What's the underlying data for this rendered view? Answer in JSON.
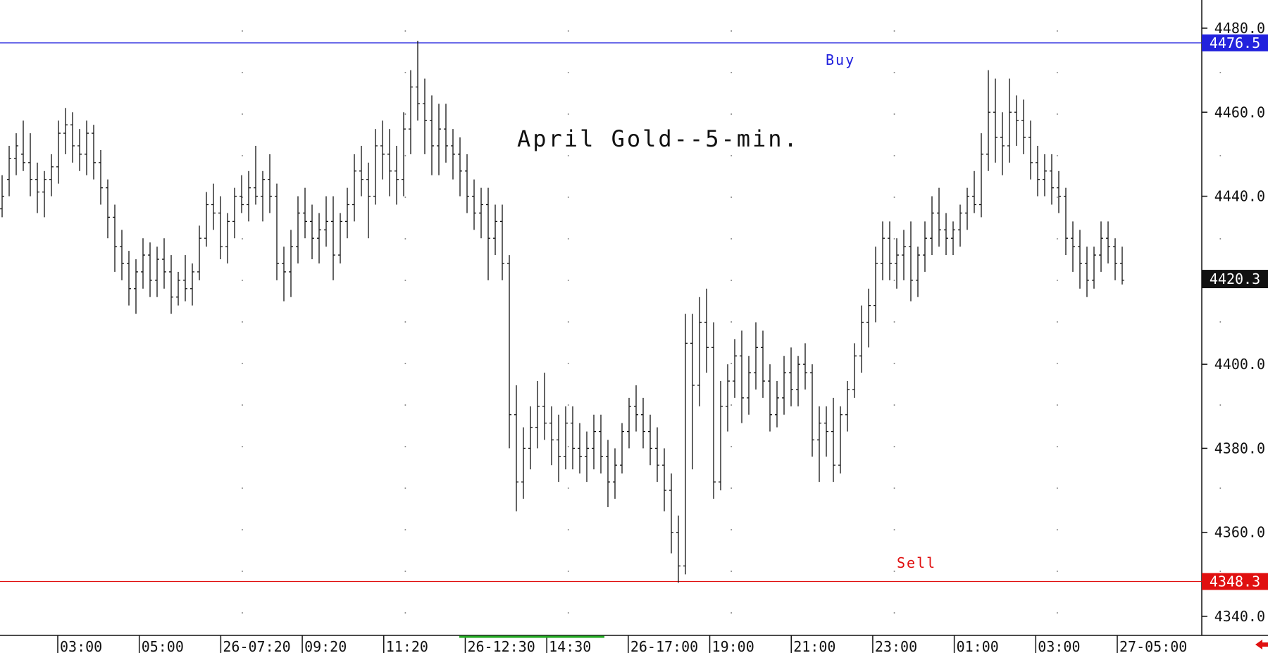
{
  "chart_data": {
    "type": "ohlc",
    "title": "April Gold--5-min.",
    "colors": {
      "bars": "#111111",
      "buy_line": "#2222dd",
      "sell_line": "#e01010",
      "last_price_badge": "#111111",
      "session_marker": "#22aa22",
      "scroll_arrow": "#e01010"
    },
    "ylim": [
      4336,
      4483
    ],
    "y_ticks": [
      "4480.0",
      "4460.0",
      "4440.0",
      "4420.0",
      "4400.0",
      "4380.0",
      "4360.0",
      "4340.0"
    ],
    "grid": "dotted vertical at time labels",
    "x_labels": [
      "03:00",
      "05:00",
      "26-07:20",
      "09:20",
      "11:20",
      "26-12:30",
      "14:30",
      "26-17:00",
      "19:00",
      "21:00",
      "23:00",
      "01:00",
      "03:00",
      "27-05:00"
    ],
    "last_price": "4420.3",
    "levels": [
      {
        "label": "Buy",
        "value": 4476.5,
        "value_label": "4476.5"
      },
      {
        "label": "Sell",
        "value": 4348.3,
        "value_label": "4348.3"
      }
    ],
    "bars": [
      [
        4437,
        4445,
        4435,
        4440
      ],
      [
        4444,
        4452,
        4440,
        4449
      ],
      [
        4449,
        4455,
        4445,
        4452
      ],
      [
        4450,
        4458,
        4446,
        4448
      ],
      [
        4448,
        4455,
        4440,
        4444
      ],
      [
        4444,
        4448,
        4436,
        4441
      ],
      [
        4441,
        4446,
        4435,
        4444
      ],
      [
        4444,
        4450,
        4440,
        4447
      ],
      [
        4447,
        4458,
        4443,
        4455
      ],
      [
        4455,
        4461,
        4450,
        4457
      ],
      [
        4457,
        4460,
        4448,
        4452
      ],
      [
        4452,
        4456,
        4446,
        4450
      ],
      [
        4450,
        4458,
        4445,
        4455
      ],
      [
        4455,
        4457,
        4444,
        4448
      ],
      [
        4448,
        4451,
        4438,
        4442
      ],
      [
        4442,
        4444,
        4430,
        4435
      ],
      [
        4435,
        4438,
        4422,
        4428
      ],
      [
        4428,
        4432,
        4420,
        4424
      ],
      [
        4424,
        4427,
        4414,
        4418
      ],
      [
        4418,
        4425,
        4412,
        4422
      ],
      [
        4422,
        4430,
        4418,
        4426
      ],
      [
        4426,
        4429,
        4416,
        4420
      ],
      [
        4420,
        4428,
        4416,
        4425
      ],
      [
        4425,
        4430,
        4418,
        4422
      ],
      [
        4422,
        4426,
        4412,
        4416
      ],
      [
        4416,
        4422,
        4414,
        4420
      ],
      [
        4420,
        4426,
        4415,
        4418
      ],
      [
        4418,
        4424,
        4414,
        4422
      ],
      [
        4422,
        4433,
        4420,
        4430
      ],
      [
        4430,
        4441,
        4428,
        4438
      ],
      [
        4438,
        4443,
        4432,
        4436
      ],
      [
        4436,
        4440,
        4425,
        4428
      ],
      [
        4428,
        4436,
        4424,
        4434
      ],
      [
        4434,
        4442,
        4430,
        4440
      ],
      [
        4440,
        4445,
        4436,
        4438
      ],
      [
        4438,
        4446,
        4434,
        4442
      ],
      [
        4442,
        4452,
        4438,
        4440
      ],
      [
        4440,
        4446,
        4434,
        4444
      ],
      [
        4444,
        4450,
        4436,
        4440
      ],
      [
        4440,
        4443,
        4420,
        4424
      ],
      [
        4424,
        4428,
        4415,
        4422
      ],
      [
        4422,
        4432,
        4416,
        4428
      ],
      [
        4428,
        4440,
        4424,
        4436
      ],
      [
        4436,
        4442,
        4430,
        4434
      ],
      [
        4434,
        4438,
        4425,
        4430
      ],
      [
        4430,
        4436,
        4424,
        4432
      ],
      [
        4432,
        4440,
        4428,
        4434
      ],
      [
        4434,
        4440,
        4420,
        4426
      ],
      [
        4426,
        4436,
        4424,
        4434
      ],
      [
        4434,
        4442,
        4430,
        4438
      ],
      [
        4438,
        4450,
        4434,
        4446
      ],
      [
        4446,
        4452,
        4440,
        4444
      ],
      [
        4444,
        4448,
        4430,
        4440
      ],
      [
        4440,
        4456,
        4438,
        4452
      ],
      [
        4452,
        4458,
        4444,
        4450
      ],
      [
        4450,
        4456,
        4440,
        4446
      ],
      [
        4446,
        4452,
        4438,
        4444
      ],
      [
        4444,
        4460,
        4440,
        4456
      ],
      [
        4456,
        4470,
        4450,
        4466
      ],
      [
        4466,
        4477,
        4458,
        4462
      ],
      [
        4462,
        4468,
        4450,
        4458
      ],
      [
        4458,
        4464,
        4445,
        4452
      ],
      [
        4452,
        4462,
        4445,
        4456
      ],
      [
        4456,
        4462,
        4448,
        4452
      ],
      [
        4452,
        4456,
        4444,
        4450
      ],
      [
        4450,
        4454,
        4440,
        4446
      ],
      [
        4446,
        4450,
        4436,
        4440
      ],
      [
        4440,
        4444,
        4432,
        4436
      ],
      [
        4436,
        4442,
        4430,
        4438
      ],
      [
        4438,
        4442,
        4420,
        4430
      ],
      [
        4430,
        4438,
        4426,
        4434
      ],
      [
        4434,
        4438,
        4420,
        4424
      ],
      [
        4424,
        4426,
        4380,
        4388
      ],
      [
        4388,
        4395,
        4365,
        4372
      ],
      [
        4372,
        4385,
        4368,
        4380
      ],
      [
        4380,
        4390,
        4375,
        4385
      ],
      [
        4385,
        4396,
        4380,
        4390
      ],
      [
        4390,
        4398,
        4382,
        4386
      ],
      [
        4386,
        4390,
        4376,
        4382
      ],
      [
        4382,
        4388,
        4372,
        4378
      ],
      [
        4378,
        4390,
        4375,
        4386
      ],
      [
        4386,
        4390,
        4375,
        4380
      ],
      [
        4380,
        4386,
        4374,
        4378
      ],
      [
        4378,
        4384,
        4372,
        4380
      ],
      [
        4380,
        4388,
        4375,
        4384
      ],
      [
        4384,
        4388,
        4374,
        4378
      ],
      [
        4378,
        4382,
        4366,
        4372
      ],
      [
        4372,
        4380,
        4368,
        4376
      ],
      [
        4376,
        4386,
        4374,
        4384
      ],
      [
        4384,
        4392,
        4380,
        4390
      ],
      [
        4390,
        4395,
        4384,
        4388
      ],
      [
        4388,
        4392,
        4380,
        4384
      ],
      [
        4384,
        4388,
        4376,
        4380
      ],
      [
        4380,
        4385,
        4372,
        4376
      ],
      [
        4376,
        4380,
        4365,
        4370
      ],
      [
        4370,
        4374,
        4355,
        4360
      ],
      [
        4360,
        4364,
        4348,
        4352
      ],
      [
        4352,
        4412,
        4350,
        4405
      ],
      [
        4405,
        4412,
        4375,
        4395
      ],
      [
        4395,
        4416,
        4390,
        4410
      ],
      [
        4410,
        4418,
        4398,
        4404
      ],
      [
        4404,
        4410,
        4368,
        4372
      ],
      [
        4372,
        4396,
        4370,
        4390
      ],
      [
        4390,
        4400,
        4384,
        4396
      ],
      [
        4396,
        4406,
        4392,
        4402
      ],
      [
        4402,
        4408,
        4386,
        4392
      ],
      [
        4392,
        4402,
        4388,
        4398
      ],
      [
        4398,
        4410,
        4394,
        4404
      ],
      [
        4404,
        4408,
        4392,
        4396
      ],
      [
        4396,
        4400,
        4384,
        4388
      ],
      [
        4388,
        4396,
        4385,
        4392
      ],
      [
        4392,
        4402,
        4388,
        4398
      ],
      [
        4398,
        4404,
        4390,
        4394
      ],
      [
        4394,
        4402,
        4390,
        4400
      ],
      [
        4400,
        4405,
        4394,
        4398
      ],
      [
        4398,
        4400,
        4378,
        4382
      ],
      [
        4382,
        4390,
        4372,
        4386
      ],
      [
        4386,
        4390,
        4378,
        4384
      ],
      [
        4384,
        4392,
        4372,
        4376
      ],
      [
        4376,
        4390,
        4374,
        4388
      ],
      [
        4388,
        4396,
        4384,
        4394
      ],
      [
        4394,
        4405,
        4392,
        4402
      ],
      [
        4402,
        4414,
        4398,
        4410
      ],
      [
        4410,
        4418,
        4404,
        4414
      ],
      [
        4414,
        4428,
        4410,
        4424
      ],
      [
        4424,
        4434,
        4420,
        4430
      ],
      [
        4430,
        4434,
        4420,
        4424
      ],
      [
        4424,
        4430,
        4418,
        4426
      ],
      [
        4426,
        4432,
        4420,
        4428
      ],
      [
        4428,
        4434,
        4415,
        4420
      ],
      [
        4420,
        4428,
        4416,
        4426
      ],
      [
        4426,
        4434,
        4422,
        4430
      ],
      [
        4430,
        4440,
        4426,
        4436
      ],
      [
        4436,
        4442,
        4428,
        4432
      ],
      [
        4432,
        4436,
        4426,
        4430
      ],
      [
        4430,
        4434,
        4426,
        4432
      ],
      [
        4432,
        4438,
        4428,
        4436
      ],
      [
        4436,
        4442,
        4432,
        4440
      ],
      [
        4440,
        4446,
        4436,
        4438
      ],
      [
        4438,
        4455,
        4435,
        4450
      ],
      [
        4450,
        4470,
        4446,
        4460
      ],
      [
        4460,
        4468,
        4448,
        4454
      ],
      [
        4454,
        4460,
        4445,
        4452
      ],
      [
        4452,
        4468,
        4448,
        4460
      ],
      [
        4460,
        4464,
        4452,
        4458
      ],
      [
        4458,
        4463,
        4450,
        4454
      ],
      [
        4454,
        4458,
        4444,
        4448
      ],
      [
        4448,
        4452,
        4440,
        4444
      ],
      [
        4444,
        4450,
        4440,
        4446
      ],
      [
        4446,
        4450,
        4438,
        4442
      ],
      [
        4442,
        4446,
        4436,
        4440
      ],
      [
        4440,
        4442,
        4426,
        4430
      ],
      [
        4430,
        4434,
        4422,
        4428
      ],
      [
        4428,
        4432,
        4418,
        4424
      ],
      [
        4424,
        4428,
        4416,
        4420
      ],
      [
        4420,
        4428,
        4418,
        4426
      ],
      [
        4426,
        4434,
        4422,
        4430
      ],
      [
        4430,
        4434,
        4424,
        4428
      ],
      [
        4428,
        4430,
        4420,
        4424
      ],
      [
        4424,
        4428,
        4419,
        4420
      ]
    ]
  }
}
